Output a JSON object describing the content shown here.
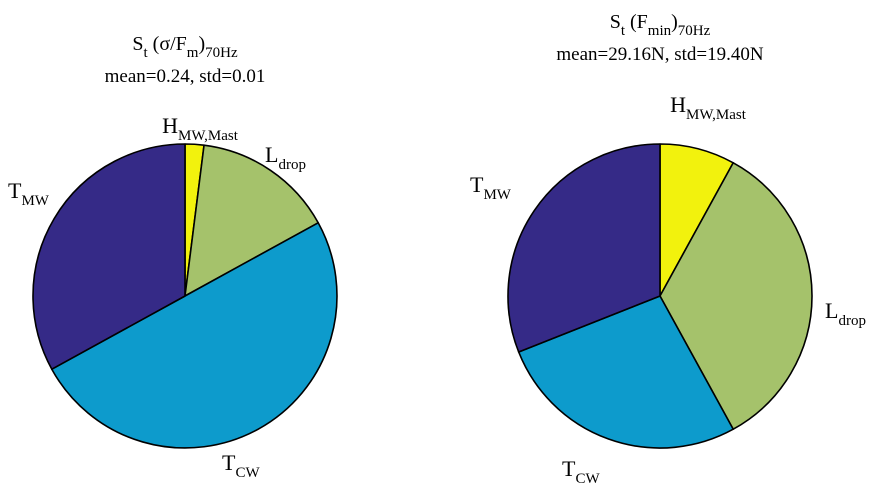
{
  "chart_data": [
    {
      "type": "pie",
      "title": {
        "main": "S",
        "sub1": "t",
        "mid": " (σ/F",
        "sub2": "m",
        "close": ")",
        "sub3": "70Hz"
      },
      "subtitle": "mean=0.24, std=0.01",
      "slices": [
        {
          "main": "H",
          "sub": "MW,Mast",
          "value": 0.02,
          "color": "#f2f20d"
        },
        {
          "main": "L",
          "sub": "drop",
          "value": 0.15,
          "color": "#a5c26b"
        },
        {
          "main": "T",
          "sub": "CW",
          "value": 0.5,
          "color": "#0d9bcc"
        },
        {
          "main": "T",
          "sub": "MW",
          "value": 0.33,
          "color": "#352a87"
        }
      ]
    },
    {
      "type": "pie",
      "title": {
        "main": "S",
        "sub1": "t",
        "mid": " (F",
        "sub2": "min",
        "close": ")",
        "sub3": "70Hz"
      },
      "subtitle": "mean=29.16N, std=19.40N",
      "slices": [
        {
          "main": "H",
          "sub": "MW,Mast",
          "value": 0.08,
          "color": "#f2f20d"
        },
        {
          "main": "L",
          "sub": "drop",
          "value": 0.34,
          "color": "#a5c26b"
        },
        {
          "main": "T",
          "sub": "CW",
          "value": 0.27,
          "color": "#0d9bcc"
        },
        {
          "main": "T",
          "sub": "MW",
          "value": 0.31,
          "color": "#352a87"
        }
      ]
    }
  ]
}
